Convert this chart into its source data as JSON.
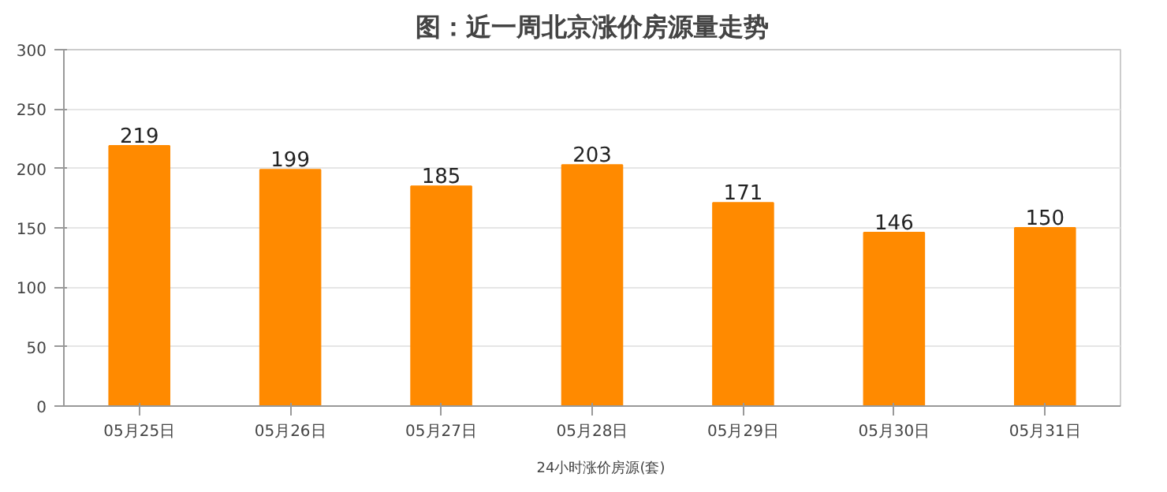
{
  "chart_data": {
    "type": "bar",
    "title": "图：近一周北京涨价房源量走势",
    "categories": [
      "05月25日",
      "05月26日",
      "05月27日",
      "05月28日",
      "05月29日",
      "05月30日",
      "05月31日"
    ],
    "series": [
      {
        "name": "24小时涨价房源(套)",
        "color": "#ff8a00",
        "values": [
          219,
          199,
          185,
          203,
          171,
          146,
          150
        ]
      }
    ],
    "ylim": [
      0,
      300
    ],
    "yticks": [
      0,
      50,
      100,
      150,
      200,
      250,
      300
    ],
    "grid": "y",
    "legend": "bottom",
    "data_labels": true
  }
}
